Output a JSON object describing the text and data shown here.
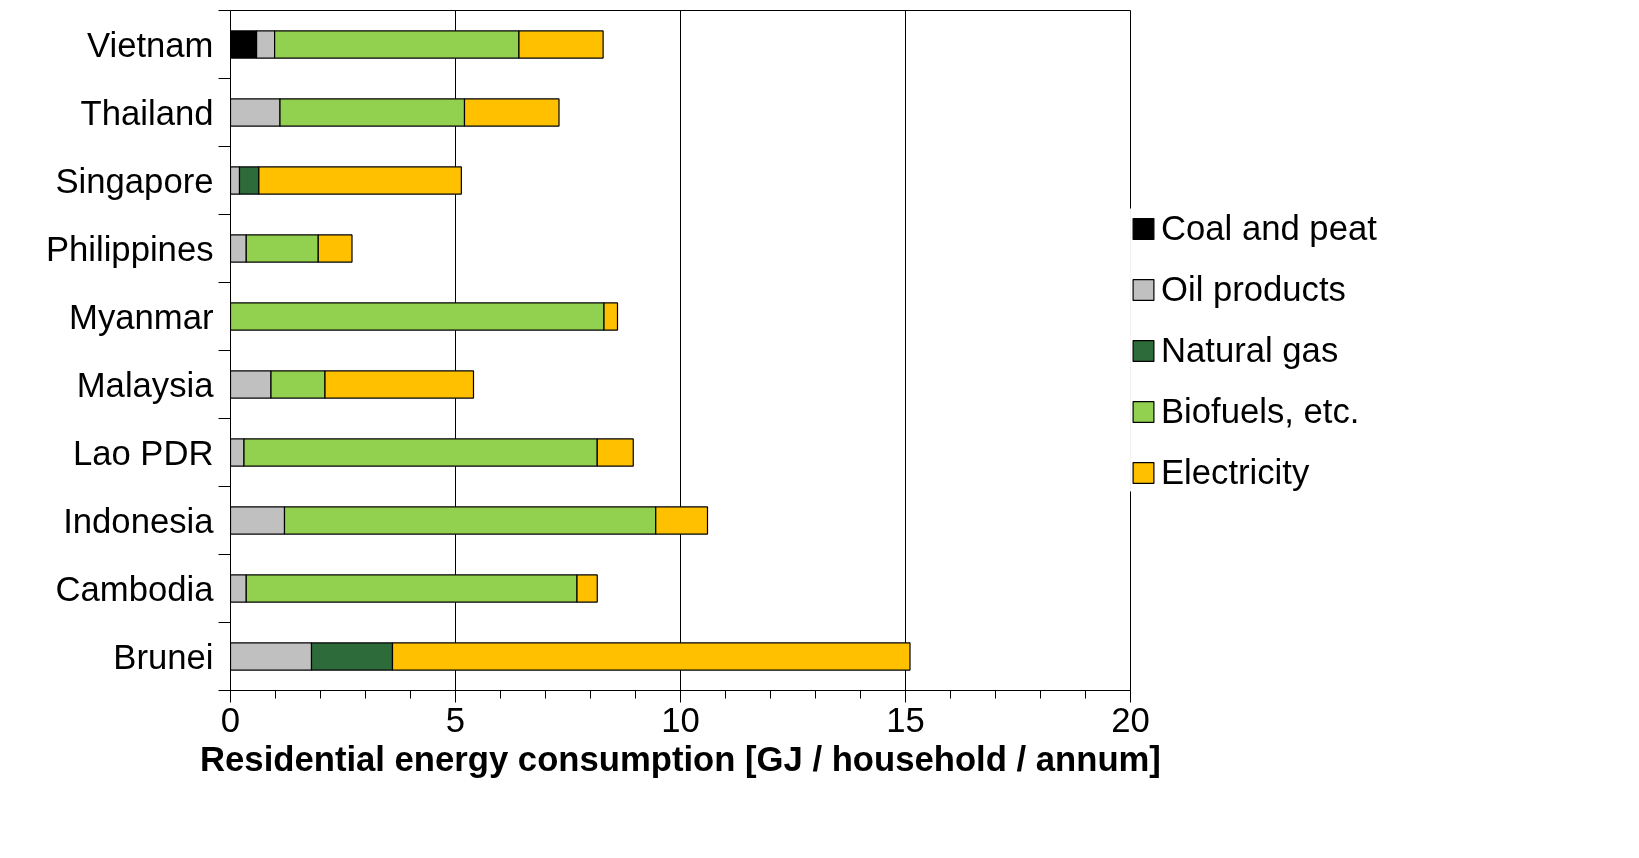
{
  "chart_data": {
    "type": "bar",
    "orientation": "horizontal",
    "stacked": true,
    "categories": [
      "Vietnam",
      "Thailand",
      "Singapore",
      "Philippines",
      "Myanmar",
      "Malaysia",
      "Lao PDR",
      "Indonesia",
      "Cambodia",
      "Brunei"
    ],
    "xlabel": "Residential energy consumption [GJ / household / annum]",
    "xlim": [
      0,
      20
    ],
    "xticks": [
      0,
      5,
      10,
      15,
      20
    ],
    "grid": "x",
    "legend": "right",
    "series": [
      {
        "name": "Coal and peat",
        "color": "#000000",
        "values": [
          0.58,
          null,
          null,
          null,
          null,
          null,
          null,
          null,
          null,
          null
        ]
      },
      {
        "name": "Oil products",
        "color": "#c0c0c0",
        "values": [
          0.4,
          1.1,
          0.2,
          0.35,
          null,
          0.9,
          0.3,
          1.2,
          0.35,
          1.8
        ]
      },
      {
        "name": "Natural gas",
        "color": "#2e6b3a",
        "values": [
          null,
          null,
          0.43,
          null,
          null,
          null,
          null,
          null,
          null,
          1.8
        ]
      },
      {
        "name": "Biofuels, etc.",
        "color": "#92d050",
        "values": [
          5.43,
          4.1,
          null,
          1.6,
          8.3,
          1.2,
          7.85,
          8.25,
          7.35,
          null
        ]
      },
      {
        "name": "Electricity",
        "color": "#ffc000",
        "values": [
          1.87,
          2.1,
          4.5,
          0.75,
          0.3,
          3.3,
          0.8,
          1.15,
          0.45,
          11.5
        ]
      }
    ]
  }
}
